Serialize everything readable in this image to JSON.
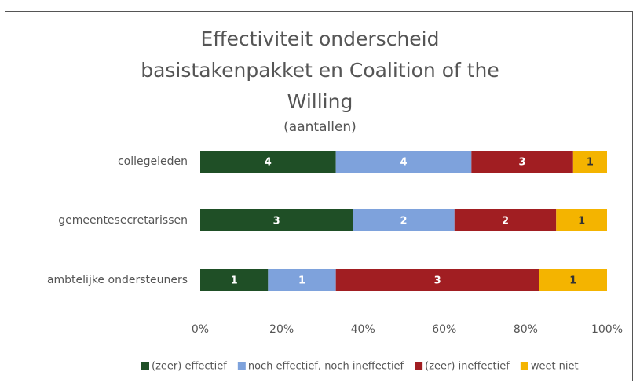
{
  "chart_data": {
    "type": "bar",
    "orientation": "horizontal",
    "stack": "percent",
    "title": "Effectiviteit onderscheid basistakenpakket en Coalition of the Willing",
    "subtitle": "(aantallen)",
    "categories": [
      "collegeleden",
      "gemeentesecretarissen",
      "ambtelijke ondersteuners"
    ],
    "series": [
      {
        "name": "(zeer) effectief",
        "color": "#1f4f26",
        "values": [
          4,
          3,
          1
        ]
      },
      {
        "name": "noch effectief, noch ineffectief",
        "color": "#7ea2dc",
        "values": [
          4,
          2,
          1
        ]
      },
      {
        "name": "(zeer) ineffectief",
        "color": "#a11e22",
        "values": [
          3,
          2,
          3
        ]
      },
      {
        "name": "weet niet",
        "color": "#f4b400",
        "values": [
          1,
          1,
          1
        ]
      }
    ],
    "xlim": [
      0,
      100
    ],
    "xticks": [
      {
        "value": 0,
        "label": "0%"
      },
      {
        "value": 20,
        "label": "20%"
      },
      {
        "value": 40,
        "label": "40%"
      },
      {
        "value": 60,
        "label": "60%"
      },
      {
        "value": 80,
        "label": "80%"
      },
      {
        "value": 100,
        "label": "100%"
      }
    ],
    "grid": false,
    "legend": "bottom"
  }
}
